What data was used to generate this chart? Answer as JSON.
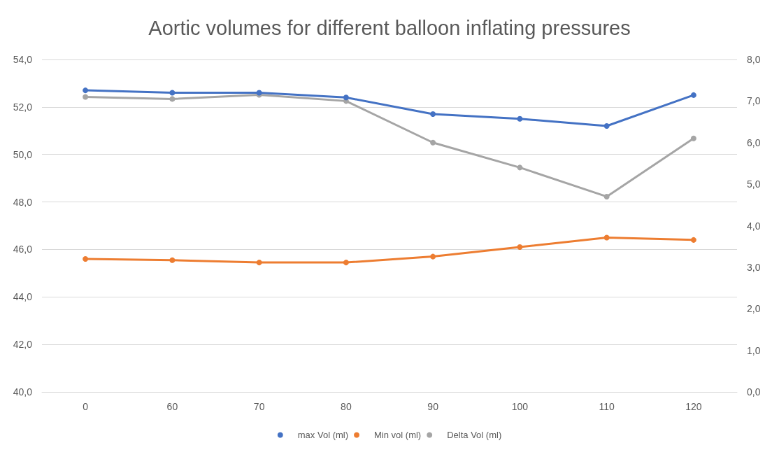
{
  "chart_data": {
    "type": "line",
    "title": "Aortic volumes for different balloon inflating pressures",
    "categories": [
      "0",
      "60",
      "70",
      "80",
      "90",
      "100",
      "110",
      "120"
    ],
    "series": [
      {
        "name": "max Vol (ml)",
        "color": "#4472c4",
        "values": [
          52.7,
          52.6,
          52.6,
          52.4,
          51.7,
          51.5,
          51.2,
          52.5
        ]
      },
      {
        "name": "Min vol (ml)",
        "color": "#ed7d31",
        "values": [
          45.6,
          45.55,
          45.45,
          45.45,
          45.7,
          46.1,
          46.5,
          46.4
        ]
      },
      {
        "name": "Delta Vol (ml)",
        "color": "#a5a5a5",
        "axis": "y2",
        "values": [
          7.1,
          7.05,
          7.15,
          7.0,
          6.0,
          5.4,
          4.7,
          6.1
        ]
      }
    ],
    "ylim": [
      40,
      54
    ],
    "yticks": [
      {
        "value": 40,
        "label": "40,0"
      },
      {
        "value": 42,
        "label": "42,0"
      },
      {
        "value": 44,
        "label": "44,0"
      },
      {
        "value": 46,
        "label": "46,0"
      },
      {
        "value": 48,
        "label": "48,0"
      },
      {
        "value": 50,
        "label": "50,0"
      },
      {
        "value": 52,
        "label": "52,0"
      },
      {
        "value": 54,
        "label": "54,0"
      }
    ],
    "y2lim": [
      0,
      8
    ],
    "y2ticks": [
      {
        "value": 0,
        "label": "0,0"
      },
      {
        "value": 1,
        "label": "1,0"
      },
      {
        "value": 2,
        "label": "2,0"
      },
      {
        "value": 3,
        "label": "3,0"
      },
      {
        "value": 4,
        "label": "4,0"
      },
      {
        "value": 5,
        "label": "5,0"
      },
      {
        "value": 6,
        "label": "6,0"
      },
      {
        "value": 7,
        "label": "7,0"
      },
      {
        "value": 8,
        "label": "8,0"
      }
    ],
    "grid": "y",
    "legend": "bottom",
    "marker": "circle",
    "line_style": "solid"
  }
}
